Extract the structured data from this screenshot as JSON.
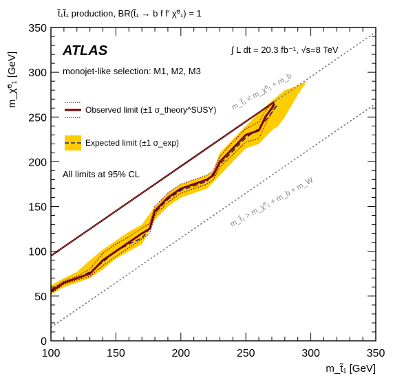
{
  "chart_data": {
    "type": "area",
    "title": "t̃₁t̃₁ production, BR(t̃₁ → b f f′ χ̃⁰₁) = 1",
    "xlabel": "m_t̃₁ [GeV]",
    "ylabel": "m_χ̃⁰₁ [GeV]",
    "xlim": [
      100,
      350
    ],
    "ylim": [
      0,
      350
    ],
    "xticks": [
      "100",
      "150",
      "200",
      "250",
      "300",
      "350"
    ],
    "yticks": [
      "0",
      "50",
      "100",
      "150",
      "200",
      "250",
      "300",
      "350"
    ],
    "experiment": "ATLAS",
    "luminosity": "∫ L dt = 20.3 fb⁻¹, √s=8 TeV",
    "selection": "monojet-like selection: M1, M2, M3",
    "cl_note": "All limits at 95% CL",
    "legend": {
      "observed": "Observed limit (±1 σ_theory^SUSY)",
      "expected": "Expected limit (±1 σ_exp)"
    },
    "diagonal_labels": {
      "upper": "m_t̃₁ < m_χ̃⁰₁ + m_b",
      "lower": "m_t̃₁ > m_χ̃⁰₁ + m_b + m_W"
    },
    "boundary_lines": [
      {
        "name": "m_t̃₁ = m_χ̃⁰₁ + m_b",
        "x": [
          100,
          350
        ],
        "y": [
          95,
          345
        ]
      },
      {
        "name": "m_t̃₁ = m_χ̃⁰₁ + m_b + m_W",
        "x": [
          100,
          350
        ],
        "y": [
          15,
          265
        ]
      }
    ],
    "series": [
      {
        "name": "Observed limit",
        "x": [
          100,
          110,
          120,
          130,
          140,
          150,
          160,
          170,
          176,
          180,
          190,
          200,
          210,
          220,
          225,
          230,
          240,
          250,
          260,
          265,
          270,
          272
        ],
        "y": [
          55,
          65,
          70,
          75,
          90,
          100,
          110,
          120,
          125,
          145,
          160,
          170,
          175,
          180,
          185,
          200,
          215,
          230,
          235,
          250,
          260,
          265
        ]
      },
      {
        "name": "Observed limit +1σ_theory",
        "x": [
          100,
          110,
          120,
          130,
          140,
          150,
          160,
          170,
          176,
          180,
          190,
          200,
          210,
          220,
          225,
          230,
          240,
          250,
          260,
          265,
          270,
          272
        ],
        "y": [
          57,
          67,
          72,
          80,
          98,
          108,
          116,
          126,
          131,
          150,
          165,
          175,
          180,
          185,
          190,
          206,
          222,
          237,
          244,
          257,
          265,
          268
        ]
      },
      {
        "name": "Observed limit -1σ_theory",
        "x": [
          100,
          110,
          120,
          130,
          140,
          150,
          160,
          170,
          176,
          180,
          190,
          200,
          210,
          220,
          225,
          230,
          240,
          250,
          260,
          265,
          270,
          272
        ],
        "y": [
          53,
          63,
          68,
          72,
          84,
          94,
          104,
          114,
          120,
          140,
          155,
          165,
          170,
          175,
          180,
          194,
          208,
          222,
          226,
          242,
          255,
          262
        ]
      },
      {
        "name": "Expected limit",
        "x": [
          100,
          110,
          120,
          130,
          140,
          150,
          160,
          170,
          176,
          180,
          190,
          200,
          210,
          220,
          230,
          240,
          250,
          260,
          270,
          275
        ],
        "y": [
          57,
          65,
          70,
          77,
          88,
          100,
          108,
          115,
          125,
          143,
          158,
          168,
          173,
          178,
          197,
          212,
          227,
          237,
          255,
          265
        ]
      },
      {
        "name": "Expected limit +1σ_exp",
        "x": [
          100,
          110,
          120,
          130,
          140,
          150,
          160,
          170,
          180,
          190,
          200,
          210,
          220,
          225,
          230,
          240,
          250,
          260,
          270,
          280,
          290,
          297
        ],
        "y": [
          62,
          70,
          77,
          90,
          102,
          112,
          122,
          130,
          150,
          165,
          175,
          180,
          185,
          190,
          210,
          225,
          240,
          255,
          268,
          280,
          285,
          290
        ]
      },
      {
        "name": "Expected limit -1σ_exp",
        "x": [
          100,
          110,
          120,
          130,
          140,
          150,
          160,
          170,
          180,
          190,
          200,
          210,
          220,
          230,
          240,
          250,
          260,
          270,
          275,
          280,
          290,
          297
        ],
        "y": [
          52,
          60,
          65,
          70,
          80,
          92,
          100,
          108,
          135,
          150,
          160,
          165,
          170,
          185,
          200,
          215,
          220,
          235,
          240,
          250,
          275,
          290
        ]
      }
    ]
  }
}
